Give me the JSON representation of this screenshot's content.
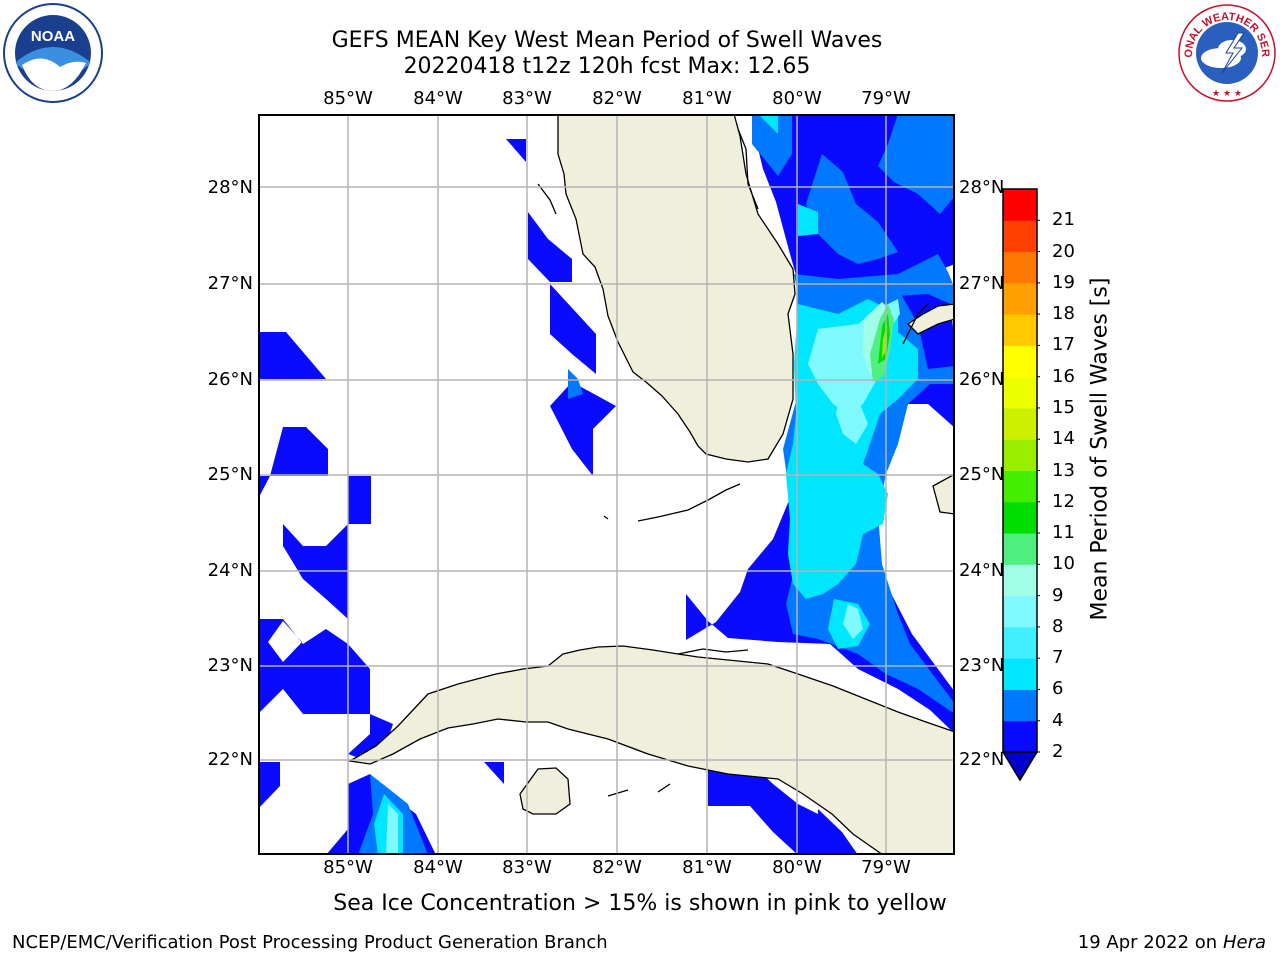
{
  "title": {
    "line1": "GEFS MEAN Key West Mean Period of Swell Waves",
    "line2": "20220418 t12z 120h fcst   Max: 12.65"
  },
  "map": {
    "lon_labels": [
      "85°W",
      "84°W",
      "83°W",
      "82°W",
      "81°W",
      "80°W",
      "79°W"
    ],
    "lat_labels": [
      "28°N",
      "27°N",
      "26°N",
      "25°N",
      "24°N",
      "23°N",
      "22°N"
    ],
    "land_color": "#efefdc",
    "ocean_color": "#ffffff",
    "grid_color": "#b4b4b4"
  },
  "colorbar": {
    "title": "Mean Period of Swell Waves [s]",
    "levels": [
      "2",
      "4",
      "6",
      "7",
      "8",
      "9",
      "10",
      "11",
      "12",
      "13",
      "14",
      "15",
      "16",
      "17",
      "18",
      "19",
      "20",
      "21"
    ],
    "colors": [
      "#0a0aff",
      "#0078ff",
      "#00e6ff",
      "#40f0ff",
      "#80f8ff",
      "#a0ffe6",
      "#50f080",
      "#00dd00",
      "#44ee00",
      "#99ee00",
      "#ccf000",
      "#eeff00",
      "#ffff00",
      "#ffc800",
      "#ffa000",
      "#ff7800",
      "#ff4000",
      "#ff0000"
    ]
  },
  "logos": {
    "noaa": "NOAA",
    "nws_arc": "NATIONAL WEATHER SERVICE"
  },
  "note": "Sea Ice Concentration > 15% is shown in pink to yellow",
  "footer": {
    "left": "NCEP/EMC/Verification Post Processing Product Generation Branch",
    "right_prefix": "19 Apr 2022 on ",
    "right_host": "Hera"
  }
}
